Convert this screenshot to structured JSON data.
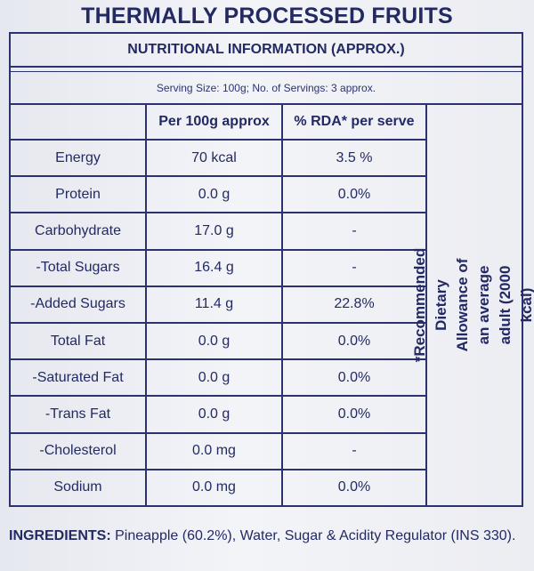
{
  "title": "THERMALLY PROCESSED FRUITS",
  "header": "NUTRITIONAL INFORMATION (APPROX.)",
  "serving": "Serving Size: 100g;   No. of Servings: 3 approx.",
  "columns": {
    "per100": "Per 100g approx",
    "rda": "% RDA* per serve"
  },
  "rows": [
    {
      "nutrient": "Energy",
      "per100": "70 kcal",
      "rda": "3.5 %"
    },
    {
      "nutrient": "Protein",
      "per100": "0.0 g",
      "rda": "0.0%"
    },
    {
      "nutrient": "Carbohydrate",
      "per100": "17.0 g",
      "rda": "-"
    },
    {
      "nutrient": "-Total Sugars",
      "per100": "16.4 g",
      "rda": "-"
    },
    {
      "nutrient": "-Added Sugars",
      "per100": "11.4  g",
      "rda": "22.8%"
    },
    {
      "nutrient": "Total Fat",
      "per100": "0.0 g",
      "rda": "0.0%"
    },
    {
      "nutrient": "-Saturated Fat",
      "per100": "0.0 g",
      "rda": "0.0%"
    },
    {
      "nutrient": "-Trans Fat",
      "per100": "0.0 g",
      "rda": "0.0%"
    },
    {
      "nutrient": "-Cholesterol",
      "per100": "0.0 mg",
      "rda": "-"
    },
    {
      "nutrient": "Sodium",
      "per100": "0.0 mg",
      "rda": "0.0%"
    }
  ],
  "side_note": "*Recommended Dietary Allowance of an average adult (2000 kcal)",
  "ingredients": {
    "label": "INGREDIENTS:",
    "text": " Pineapple (60.2%), Water, Sugar & Acidity Regulator (INS 330)."
  }
}
